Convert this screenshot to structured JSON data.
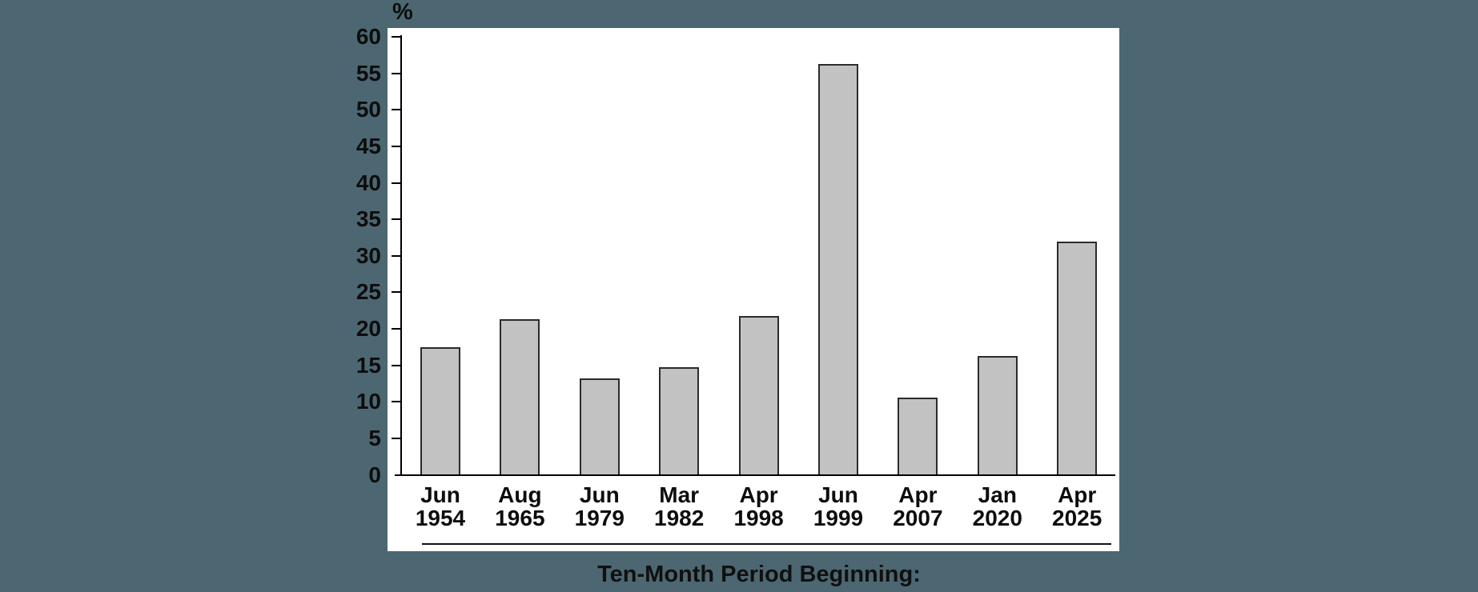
{
  "colors": {
    "background": "#4c6771",
    "panel": "#ffffff",
    "bar_fill": "#c2c2c2",
    "bar_border": "#2b2b2b",
    "axis": "#000000",
    "text": "#0d0d0d"
  },
  "chart_data": {
    "type": "bar",
    "title": "",
    "y_axis_unit": "%",
    "x_axis_label": "Ten-Month Period Beginning:",
    "categories": [
      "Jun 1954",
      "Aug 1965",
      "Jun 1979",
      "Mar 1982",
      "Apr 1998",
      "Jun 1999",
      "Apr 2007",
      "Jan 2020",
      "Apr 2025"
    ],
    "values": [
      17.5,
      21.3,
      13.2,
      14.7,
      21.7,
      56.3,
      10.6,
      16.3,
      31.9
    ],
    "ylim": [
      0,
      60
    ],
    "yticks": [
      60,
      55,
      50,
      45,
      40,
      35,
      30,
      25,
      20,
      15,
      10,
      5,
      0
    ],
    "grid": false,
    "legend": false,
    "bar_count": 9
  }
}
